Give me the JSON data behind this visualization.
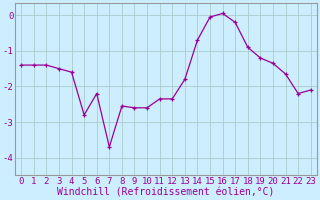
{
  "x": [
    0,
    1,
    2,
    3,
    4,
    5,
    6,
    7,
    8,
    9,
    10,
    11,
    12,
    13,
    14,
    15,
    16,
    17,
    18,
    19,
    20,
    21,
    22,
    23
  ],
  "y": [
    -1.4,
    -1.4,
    -1.4,
    -1.5,
    -1.6,
    -2.8,
    -2.2,
    -3.7,
    -2.55,
    -2.6,
    -2.6,
    -2.35,
    -2.35,
    -1.8,
    -0.7,
    -0.05,
    0.05,
    -0.2,
    -0.9,
    -1.2,
    -1.35,
    -1.65,
    -2.2,
    -2.1
  ],
  "line_color": "#990099",
  "marker": "+",
  "bg_color": "#cceeff",
  "grid_color": "#aacccc",
  "spine_color": "#999999",
  "label_color": "#990099",
  "xlabel": "Windchill (Refroidissement éolien,°C)",
  "xlabel_fontsize": 7.0,
  "tick_fontsize": 6.5,
  "ylim": [
    -4.5,
    0.35
  ],
  "yticks": [
    0,
    -1,
    -2,
    -3,
    -4
  ],
  "ytick_labels": [
    "0",
    "-1",
    "-2",
    "-3",
    "-4"
  ],
  "xlim": [
    -0.5,
    23.5
  ],
  "markersize": 3.5,
  "linewidth": 0.9
}
